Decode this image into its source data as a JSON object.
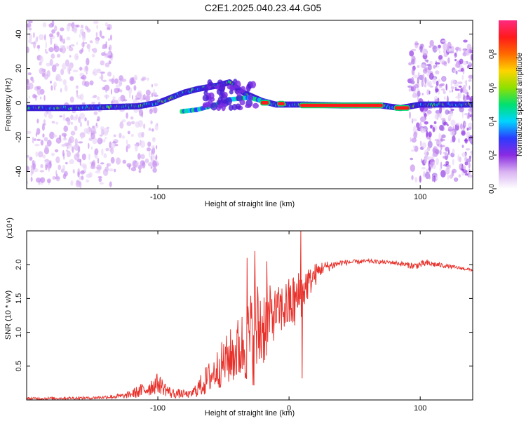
{
  "title": "C2E1.2025.040.23.44.G05",
  "chart_data": [
    {
      "type": "heatmap",
      "xlabel": "Height of straight line (km)",
      "ylabel": "Frequency (Hz)",
      "xlim": [
        -200,
        140
      ],
      "ylim": [
        -50,
        48
      ],
      "xticks": [
        -100,
        100
      ],
      "yticks": [
        -40,
        -20,
        0,
        20,
        40
      ],
      "colorbar": {
        "label": "Normalized spectral amplitude",
        "ticks": [
          "0.0",
          "0.2",
          "0.4",
          "0.6",
          "0.8"
        ],
        "range": [
          0,
          1
        ],
        "colors": [
          "#ffffff",
          "#d9b3f2",
          "#8a2be2",
          "#2b3bff",
          "#00d5ff",
          "#00e070",
          "#8fe000",
          "#ffd400",
          "#ff6a00",
          "#ff1a1a",
          "#ff2a80"
        ]
      },
      "ridge": [
        {
          "x": -200,
          "f": -3
        },
        {
          "x": -170,
          "f": -3
        },
        {
          "x": -140,
          "f": -2.5
        },
        {
          "x": -115,
          "f": -2
        },
        {
          "x": -100,
          "f": 0
        },
        {
          "x": -90,
          "f": 3
        },
        {
          "x": -80,
          "f": 6
        },
        {
          "x": -70,
          "f": 8
        },
        {
          "x": -55,
          "f": 10
        },
        {
          "x": -45,
          "f": 12
        },
        {
          "x": -35,
          "f": 6
        },
        {
          "x": -20,
          "f": 1
        },
        {
          "x": -10,
          "f": -1
        },
        {
          "x": 0,
          "f": -1
        },
        {
          "x": 10,
          "f": -1
        },
        {
          "x": 40,
          "f": -1.5
        },
        {
          "x": 70,
          "f": -1.5
        },
        {
          "x": 85,
          "f": -3
        },
        {
          "x": 100,
          "f": -1
        },
        {
          "x": 140,
          "f": -1
        }
      ],
      "lower_branch": [
        {
          "x": -82,
          "f": -5
        },
        {
          "x": -70,
          "f": -4
        },
        {
          "x": -55,
          "f": -1
        },
        {
          "x": -45,
          "f": 2
        },
        {
          "x": -30,
          "f": 3
        },
        {
          "x": -15,
          "f": 0
        }
      ],
      "hot_segments": [
        {
          "x0": 8,
          "x1": 72,
          "f": -1.5
        },
        {
          "x0": 80,
          "x1": 92,
          "f": -3
        },
        {
          "x0": -22,
          "x1": -15,
          "f": 0
        },
        {
          "x0": -9,
          "x1": -3,
          "f": -0.5
        }
      ],
      "scatter_regions": [
        {
          "x0": -200,
          "x1": -135,
          "f0": -48,
          "f1": 48,
          "density": "high"
        },
        {
          "x0": -135,
          "x1": -100,
          "f0": -40,
          "f1": 15,
          "density": "low"
        },
        {
          "x0": 92,
          "x1": 140,
          "f0": -45,
          "f1": 36,
          "density": "high"
        }
      ]
    },
    {
      "type": "line",
      "xlabel": "Height of straight line (km)",
      "ylabel": "SNR (10 * v/v)",
      "multiplier": "(x10⁴)",
      "xlim": [
        -200,
        140
      ],
      "ylim": [
        0,
        2.5
      ],
      "xticks": [
        -100,
        0,
        100
      ],
      "yticks": [
        0.5,
        1.0,
        1.5,
        2.0
      ],
      "color": "#e8322c",
      "envelope": [
        {
          "x": -200,
          "base": 0.02,
          "amp": 0.02
        },
        {
          "x": -150,
          "base": 0.03,
          "amp": 0.02
        },
        {
          "x": -125,
          "base": 0.06,
          "amp": 0.04
        },
        {
          "x": -110,
          "base": 0.15,
          "amp": 0.12
        },
        {
          "x": -100,
          "base": 0.25,
          "amp": 0.15
        },
        {
          "x": -90,
          "base": 0.1,
          "amp": 0.08
        },
        {
          "x": -75,
          "base": 0.08,
          "amp": 0.05
        },
        {
          "x": -65,
          "base": 0.25,
          "amp": 0.2
        },
        {
          "x": -50,
          "base": 0.55,
          "amp": 0.35
        },
        {
          "x": -35,
          "base": 0.8,
          "amp": 0.55
        },
        {
          "x": -25,
          "base": 1.0,
          "amp": 0.8
        },
        {
          "x": -10,
          "base": 1.3,
          "amp": 0.35
        },
        {
          "x": 5,
          "base": 1.45,
          "amp": 0.45
        },
        {
          "x": 15,
          "base": 1.75,
          "amp": 0.25
        },
        {
          "x": 25,
          "base": 1.95,
          "amp": 0.1
        },
        {
          "x": 40,
          "base": 2.03,
          "amp": 0.04
        },
        {
          "x": 60,
          "base": 2.05,
          "amp": 0.03
        },
        {
          "x": 80,
          "base": 2.03,
          "amp": 0.03
        },
        {
          "x": 95,
          "base": 1.98,
          "amp": 0.05
        },
        {
          "x": 105,
          "base": 2.02,
          "amp": 0.05
        },
        {
          "x": 120,
          "base": 1.98,
          "amp": 0.03
        },
        {
          "x": 140,
          "base": 1.92,
          "amp": 0.02
        }
      ],
      "spikes": [
        {
          "x": -32,
          "y": 2.1
        },
        {
          "x": -26,
          "y": 2.2
        },
        {
          "x": -17,
          "y": 2.05
        },
        {
          "x": 9,
          "y": 2.5
        },
        {
          "x": 10,
          "y": 0.32
        },
        {
          "x": 16,
          "y": 1.8
        }
      ]
    }
  ]
}
